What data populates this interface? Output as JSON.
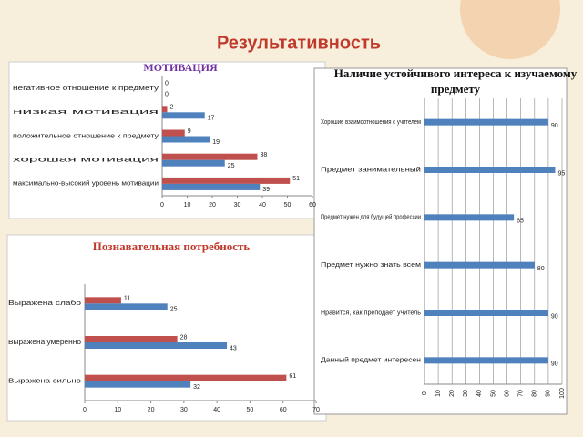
{
  "title": "Результативность",
  "chart_data": [
    {
      "type": "hbar",
      "title": "МОТИВАЦИЯ",
      "categories": [
        "негативное отношение к предмету",
        "низкая мотивация",
        "положительное отношение к предмету",
        "хорошая мотивация",
        "максимально-высокий уровень мотивации"
      ],
      "series": [
        {
          "color": "#c0504d",
          "values": [
            0,
            2,
            9,
            38,
            51
          ]
        },
        {
          "color": "#4f81bd",
          "values": [
            0,
            17,
            19,
            25,
            39
          ]
        }
      ],
      "xlim": [
        0,
        60
      ],
      "xticks": [
        0,
        10,
        20,
        30,
        40,
        50,
        60
      ],
      "grid": false
    },
    {
      "type": "hbar",
      "title": "Познавательная потребность",
      "categories": [
        "Выражена слабо",
        "Выражена умеренно",
        "Выражена сильно"
      ],
      "series": [
        {
          "color": "#c0504d",
          "values": [
            11,
            28,
            61
          ]
        },
        {
          "color": "#4f81bd",
          "values": [
            25,
            43,
            32
          ]
        }
      ],
      "xlim": [
        0,
        70
      ],
      "xticks": [
        0,
        10,
        20,
        30,
        40,
        50,
        60,
        70
      ],
      "grid": false
    },
    {
      "type": "hbar",
      "title": "Наличие устойчивого интереса к изучаемому предмету",
      "categories": [
        "Хорошие взаимоотношения с учителем",
        "Предмет занимательный",
        "Предмет нужен для будущей профессии",
        "Предмет нужно знать всем",
        "Нравится, как преподает учитель",
        "Данный предмет интересен"
      ],
      "series": [
        {
          "color": "#4f81bd",
          "values": [
            90,
            95,
            65,
            80,
            90,
            90
          ]
        }
      ],
      "xlim": [
        0,
        100
      ],
      "xticks": [
        0,
        10,
        20,
        30,
        40,
        50,
        60,
        70,
        80,
        90,
        100
      ],
      "grid": true
    }
  ]
}
